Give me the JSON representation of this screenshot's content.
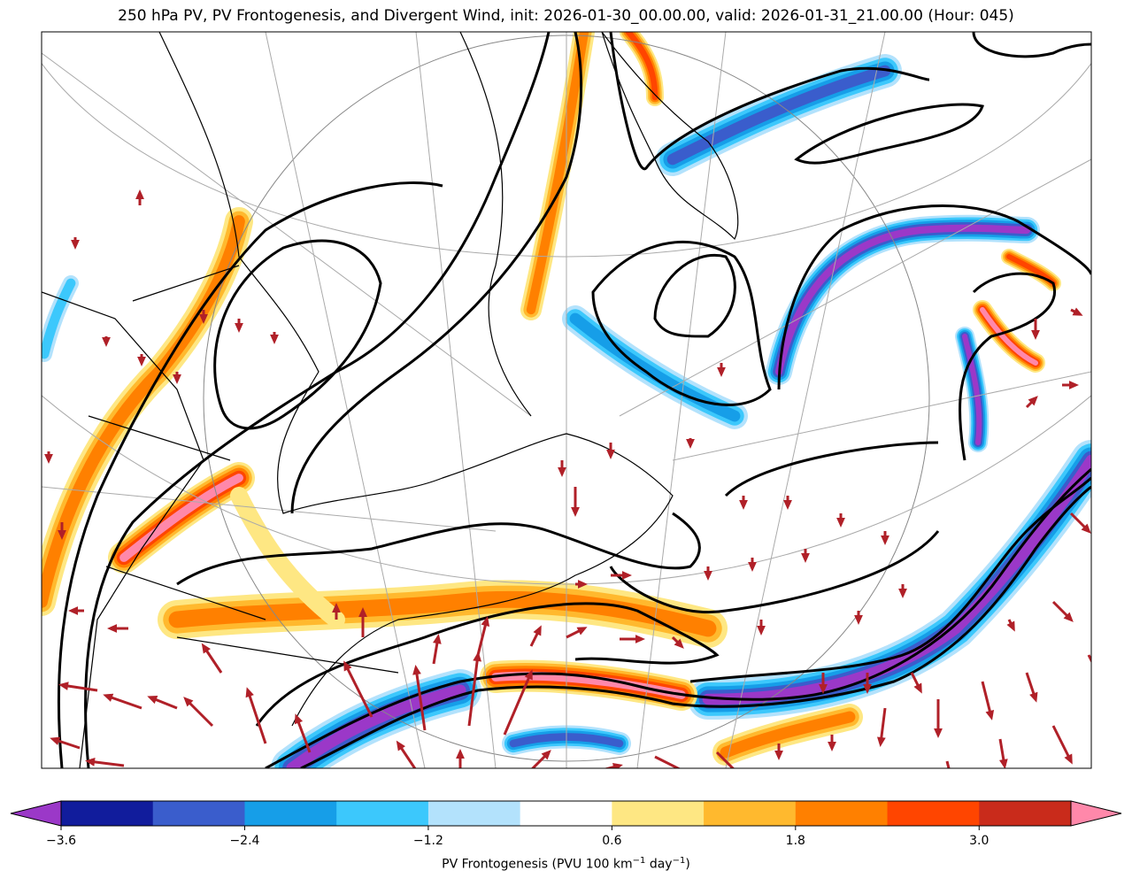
{
  "title": "250 hPa PV, PV Frontogenesis, and Divergent Wind, init: 2026-01-30_00.00.00, valid: 2026-01-31_21.00.00 (Hour: 045)",
  "colorbar": {
    "label_main": "PV Frontogenesis (PVU 100 km",
    "label_sup1": "−1",
    "label_mid": " day",
    "label_sup2": "−1",
    "label_end": ")",
    "ticks": [
      "−3.6",
      "−2.4",
      "−1.2",
      "0.6",
      "1.8",
      "3.0"
    ],
    "levels": [
      -3.6,
      -3.0,
      -2.4,
      -1.8,
      -1.2,
      -0.6,
      0.6,
      1.2,
      1.8,
      2.4,
      3.0,
      3.6
    ],
    "colors": [
      "#111c9c",
      "#3a5dcc",
      "#169ee8",
      "#3cc8fc",
      "#b3e2fc",
      "#ffffff",
      "#fee783",
      "#ffb92e",
      "#ff8000",
      "#ff4500",
      "#c92b1b"
    ],
    "under_color": "#9b38c8",
    "over_color": "#ff88aa"
  },
  "wind_arrow_color": "#b02028"
}
